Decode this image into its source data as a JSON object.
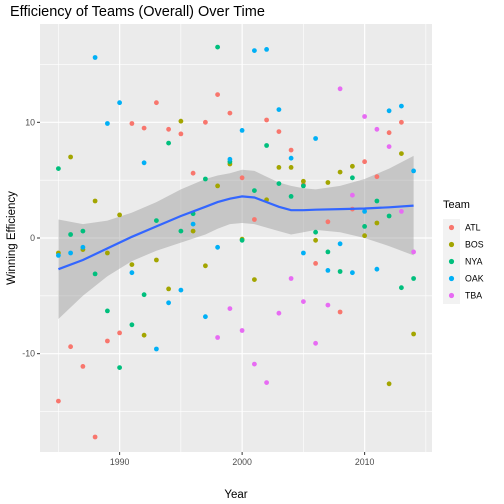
{
  "chart_data": {
    "type": "scatter",
    "title": "Efficiency of Teams (Overall) Over Time",
    "xlabel": "Year",
    "ylabel": "Winning Efficiency",
    "xlim": [
      1983.5,
      2015.5
    ],
    "ylim": [
      -18.5,
      18.5
    ],
    "x_ticks": [
      1990,
      2000,
      2010
    ],
    "y_ticks": [
      -10,
      0,
      10
    ],
    "grid": true,
    "legend": {
      "title": "Team",
      "position": "right"
    },
    "colors": {
      "ATL": "#F8766D",
      "BOS": "#A3A500",
      "NYA": "#00BF7D",
      "OAK": "#00B0F6",
      "TBA": "#E76BF3",
      "smooth_line": "#3366FF",
      "ribbon": "#999999",
      "panel": "#EBEBEB"
    },
    "series": [
      {
        "name": "ATL",
        "points": [
          [
            1985,
            -14.1
          ],
          [
            1986,
            -9.4
          ],
          [
            1987,
            -11.1
          ],
          [
            1988,
            -17.2
          ],
          [
            1989,
            -8.9
          ],
          [
            1990,
            -8.2
          ],
          [
            1991,
            9.9
          ],
          [
            1992,
            9.5
          ],
          [
            1993,
            11.7
          ],
          [
            1994,
            9.4
          ],
          [
            1995,
            9.0
          ],
          [
            1996,
            5.6
          ],
          [
            1997,
            10.0
          ],
          [
            1998,
            12.4
          ],
          [
            1999,
            10.8
          ],
          [
            2000,
            5.2
          ],
          [
            2001,
            1.6
          ],
          [
            2002,
            10.2
          ],
          [
            2003,
            9.2
          ],
          [
            2004,
            7.6
          ],
          [
            2005,
            4.6
          ],
          [
            2006,
            -2.2
          ],
          [
            2007,
            1.4
          ],
          [
            2008,
            -6.4
          ],
          [
            2009,
            2.5
          ],
          [
            2010,
            6.6
          ],
          [
            2011,
            5.3
          ],
          [
            2012,
            9.1
          ],
          [
            2013,
            10.0
          ]
        ]
      },
      {
        "name": "BOS",
        "points": [
          [
            1985,
            -1.3
          ],
          [
            1986,
            7.0
          ],
          [
            1987,
            -1.0
          ],
          [
            1988,
            3.2
          ],
          [
            1989,
            -1.3
          ],
          [
            1990,
            2.0
          ],
          [
            1991,
            -2.3
          ],
          [
            1992,
            -8.4
          ],
          [
            1993,
            -1.9
          ],
          [
            1994,
            -4.4
          ],
          [
            1995,
            10.1
          ],
          [
            1996,
            0.6
          ],
          [
            1997,
            -2.4
          ],
          [
            1998,
            4.5
          ],
          [
            1999,
            6.4
          ],
          [
            2000,
            -0.1
          ],
          [
            2001,
            -3.6
          ],
          [
            2002,
            3.3
          ],
          [
            2003,
            6.1
          ],
          [
            2004,
            6.1
          ],
          [
            2005,
            4.9
          ],
          [
            2006,
            -0.2
          ],
          [
            2007,
            4.8
          ],
          [
            2008,
            5.7
          ],
          [
            2009,
            6.2
          ],
          [
            2010,
            0.2
          ],
          [
            2011,
            1.3
          ],
          [
            2012,
            -12.6
          ],
          [
            2013,
            7.3
          ],
          [
            2014,
            -8.3
          ]
        ]
      },
      {
        "name": "NYA",
        "points": [
          [
            1985,
            6.0
          ],
          [
            1986,
            0.3
          ],
          [
            1987,
            0.6
          ],
          [
            1988,
            -3.1
          ],
          [
            1989,
            -6.3
          ],
          [
            1990,
            -11.2
          ],
          [
            1991,
            -7.5
          ],
          [
            1992,
            -4.9
          ],
          [
            1993,
            1.5
          ],
          [
            1994,
            8.2
          ],
          [
            1995,
            0.6
          ],
          [
            1996,
            2.1
          ],
          [
            1997,
            5.1
          ],
          [
            1998,
            16.5
          ],
          [
            1999,
            6.6
          ],
          [
            2000,
            -0.2
          ],
          [
            2001,
            4.1
          ],
          [
            2002,
            8.0
          ],
          [
            2003,
            4.7
          ],
          [
            2004,
            3.6
          ],
          [
            2005,
            4.5
          ],
          [
            2006,
            0.5
          ],
          [
            2007,
            -1.2
          ],
          [
            2008,
            -2.9
          ],
          [
            2009,
            5.2
          ],
          [
            2010,
            1.0
          ],
          [
            2011,
            3.2
          ],
          [
            2012,
            1.9
          ],
          [
            2013,
            -4.3
          ],
          [
            2014,
            -3.5
          ]
        ]
      },
      {
        "name": "OAK",
        "points": [
          [
            1985,
            -1.5
          ],
          [
            1986,
            -1.3
          ],
          [
            1987,
            -0.8
          ],
          [
            1988,
            15.6
          ],
          [
            1989,
            9.9
          ],
          [
            1990,
            11.7
          ],
          [
            1991,
            -3.0
          ],
          [
            1992,
            6.5
          ],
          [
            1993,
            -9.6
          ],
          [
            1994,
            -5.6
          ],
          [
            1995,
            -4.5
          ],
          [
            1996,
            1.2
          ],
          [
            1997,
            -6.8
          ],
          [
            1998,
            -0.8
          ],
          [
            1999,
            6.8
          ],
          [
            2000,
            9.3
          ],
          [
            2001,
            16.2
          ],
          [
            2002,
            16.3
          ],
          [
            2003,
            11.1
          ],
          [
            2004,
            6.9
          ],
          [
            2005,
            -1.3
          ],
          [
            2006,
            8.6
          ],
          [
            2007,
            -2.8
          ],
          [
            2008,
            -0.5
          ],
          [
            2009,
            -3.0
          ],
          [
            2010,
            2.3
          ],
          [
            2011,
            -2.7
          ],
          [
            2012,
            11.0
          ],
          [
            2013,
            11.4
          ],
          [
            2014,
            5.8
          ]
        ]
      },
      {
        "name": "TBA",
        "points": [
          [
            1998,
            -8.6
          ],
          [
            1999,
            -6.1
          ],
          [
            2000,
            -8.0
          ],
          [
            2001,
            -10.9
          ],
          [
            2002,
            -12.5
          ],
          [
            2003,
            -6.5
          ],
          [
            2004,
            -3.5
          ],
          [
            2005,
            -5.5
          ],
          [
            2006,
            -9.1
          ],
          [
            2007,
            -5.8
          ],
          [
            2008,
            12.9
          ],
          [
            2009,
            3.7
          ],
          [
            2010,
            10.5
          ],
          [
            2011,
            9.4
          ],
          [
            2012,
            7.9
          ],
          [
            2013,
            2.3
          ],
          [
            2014,
            -1.2
          ]
        ]
      }
    ],
    "smooth_line": {
      "x": [
        1985,
        1987,
        1989,
        1991,
        1993,
        1995,
        1997,
        1998,
        1999,
        2000,
        2001,
        2002,
        2003,
        2004,
        2005,
        2006,
        2008,
        2010,
        2012,
        2014
      ],
      "y": [
        -2.7,
        -1.9,
        -0.9,
        0.1,
        1.0,
        1.9,
        2.7,
        3.1,
        3.4,
        3.6,
        3.5,
        3.1,
        2.7,
        2.4,
        2.4,
        2.45,
        2.5,
        2.55,
        2.65,
        2.8
      ]
    },
    "confidence_band": {
      "x": [
        1985,
        1987,
        1989,
        1991,
        1993,
        1995,
        1997,
        1998,
        1999,
        2000,
        2001,
        2002,
        2003,
        2004,
        2005,
        2006,
        2008,
        2010,
        2012,
        2014
      ],
      "lower": [
        -7.0,
        -5.0,
        -3.3,
        -2.0,
        -1.1,
        -0.4,
        0.3,
        0.8,
        1.2,
        1.3,
        1.2,
        0.9,
        0.6,
        0.3,
        0.5,
        0.7,
        0.5,
        0.0,
        -0.7,
        -1.5
      ],
      "upper": [
        1.6,
        1.2,
        1.5,
        2.2,
        3.1,
        4.2,
        5.1,
        5.4,
        5.6,
        5.9,
        5.8,
        5.3,
        4.8,
        4.5,
        4.3,
        4.2,
        4.5,
        5.1,
        6.0,
        7.1
      ]
    }
  }
}
